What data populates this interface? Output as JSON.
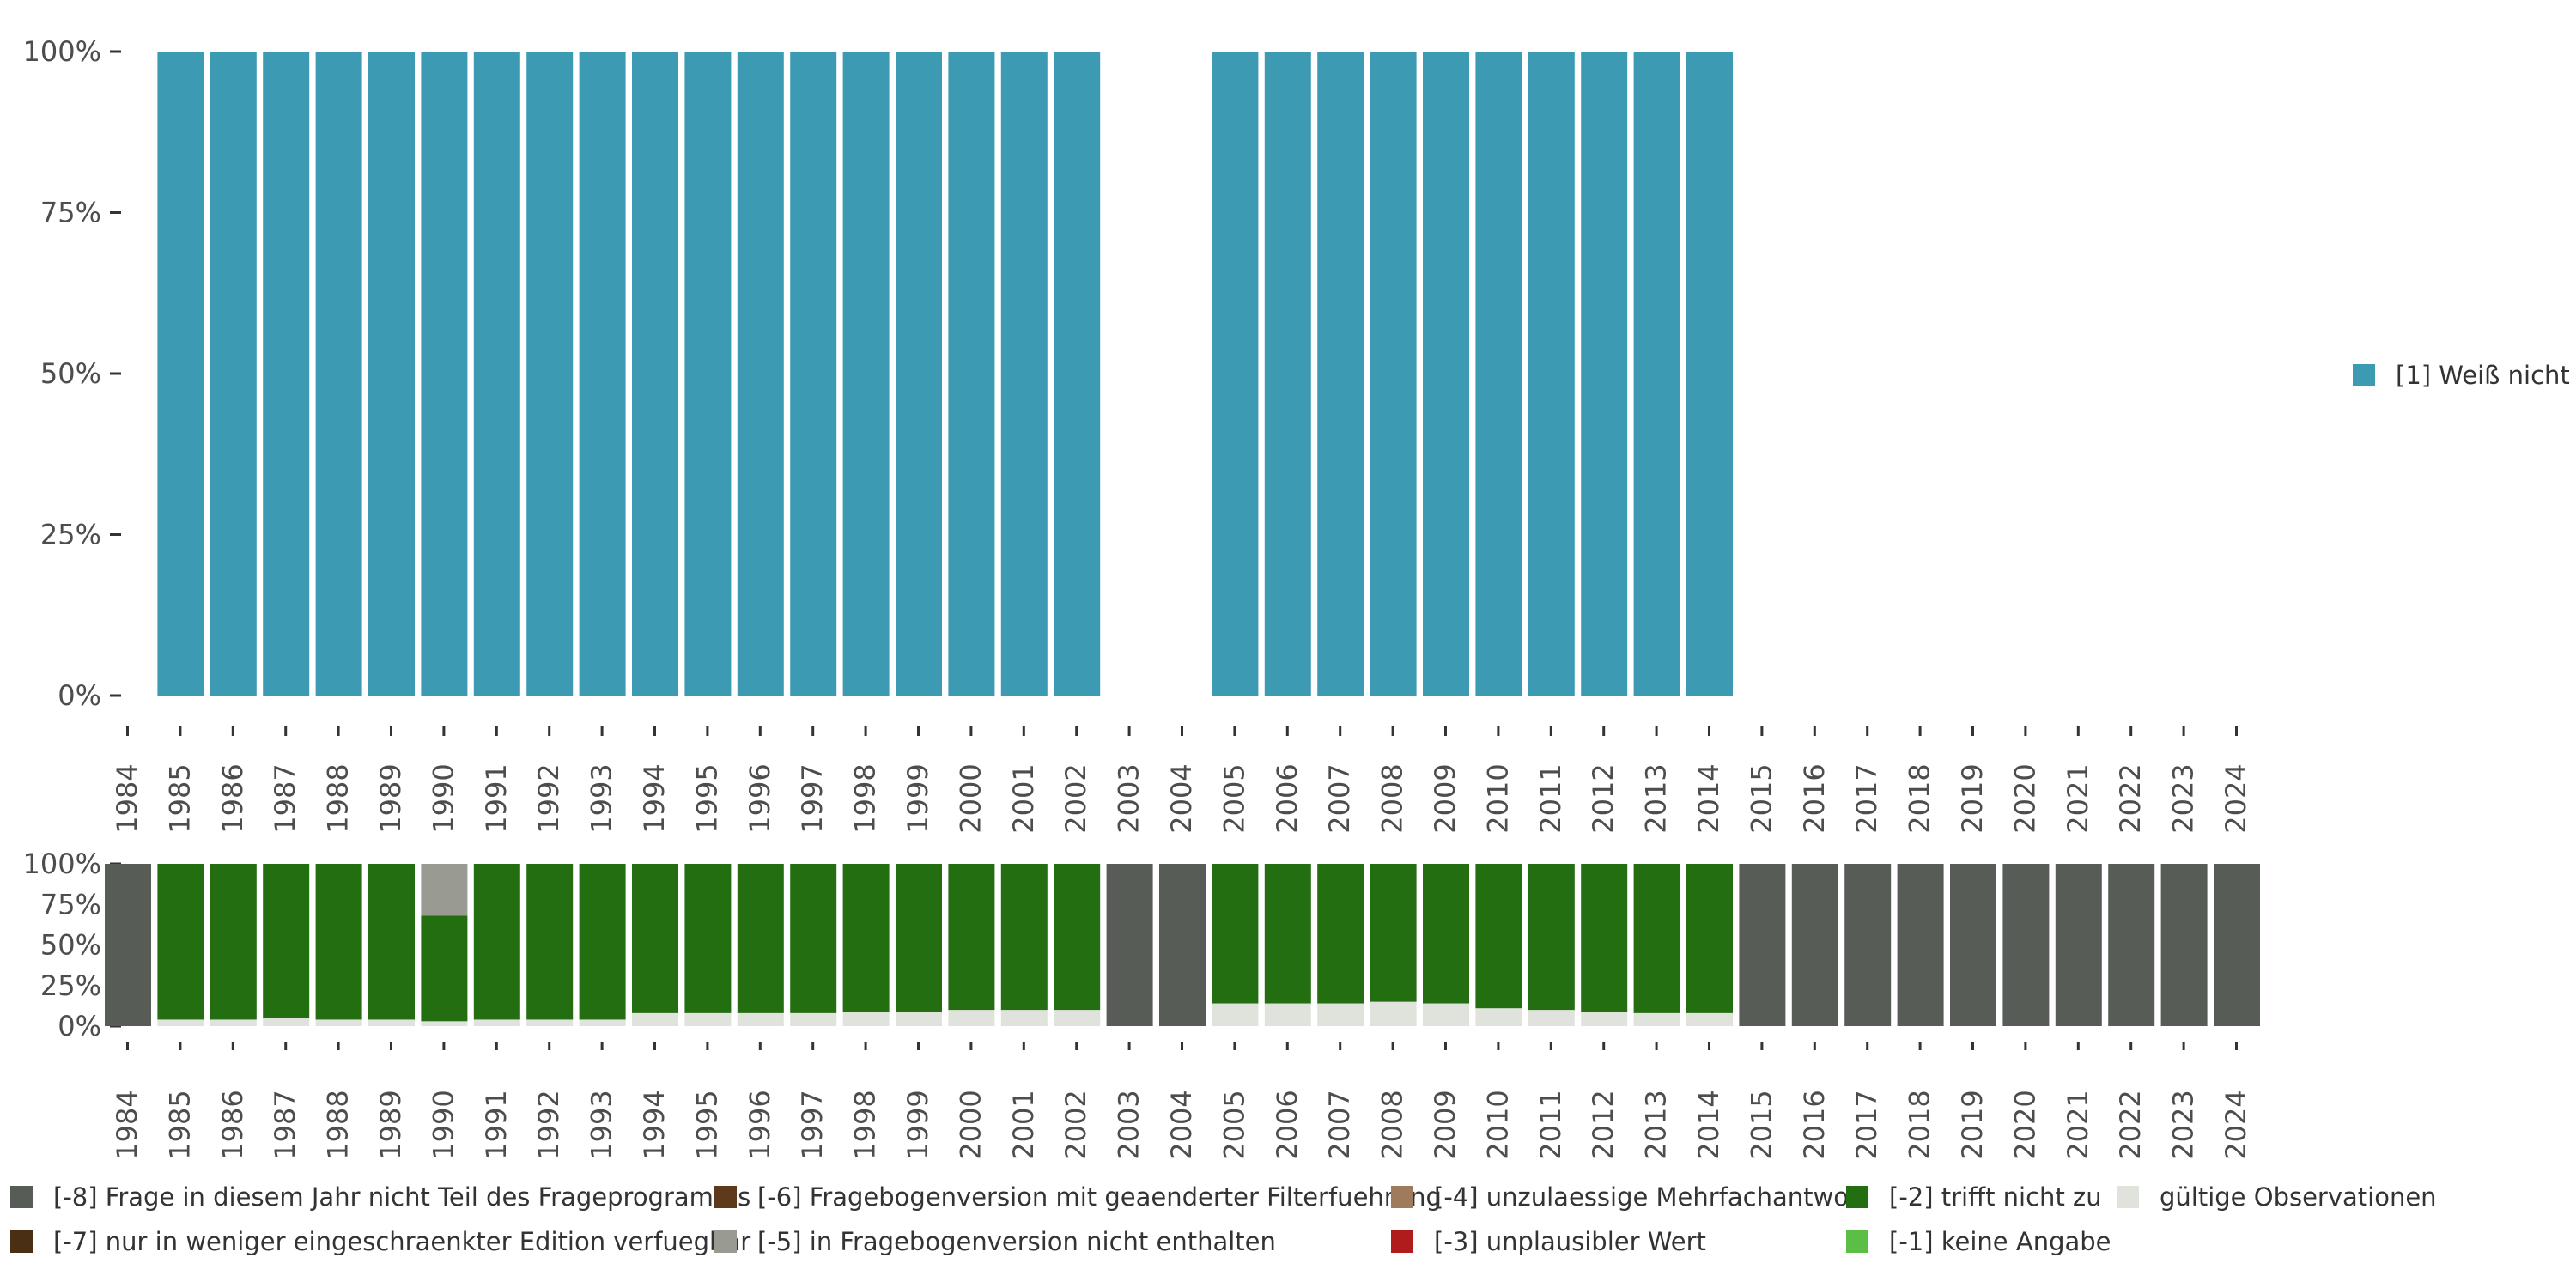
{
  "chart_data": [
    {
      "type": "bar",
      "stacked": true,
      "title": "",
      "xlabel": "",
      "ylabel": "",
      "ylim": [
        0,
        100
      ],
      "y_ticks": [
        "0%",
        "25%",
        "50%",
        "75%",
        "100%"
      ],
      "categories": [
        "1984",
        "1985",
        "1986",
        "1987",
        "1988",
        "1989",
        "1990",
        "1991",
        "1992",
        "1993",
        "1994",
        "1995",
        "1996",
        "1997",
        "1998",
        "1999",
        "2000",
        "2001",
        "2002",
        "2003",
        "2004",
        "2005",
        "2006",
        "2007",
        "2008",
        "2009",
        "2010",
        "2011",
        "2012",
        "2013",
        "2014",
        "2015",
        "2016",
        "2017",
        "2018",
        "2019",
        "2020",
        "2021",
        "2022",
        "2023",
        "2024"
      ],
      "series": [
        {
          "name": "[1] Weiß nicht",
          "color": "#3d9ab3",
          "values": [
            null,
            100,
            100,
            100,
            100,
            100,
            100,
            100,
            100,
            100,
            100,
            100,
            100,
            100,
            100,
            100,
            100,
            100,
            100,
            null,
            null,
            100,
            100,
            100,
            100,
            100,
            100,
            100,
            100,
            100,
            100,
            null,
            null,
            null,
            null,
            null,
            null,
            null,
            null,
            null,
            null
          ]
        }
      ],
      "legend": {
        "position": "right",
        "items": [
          {
            "label": "[1] Weiß nicht",
            "color": "#3d9ab3"
          }
        ]
      }
    },
    {
      "type": "bar",
      "stacked": true,
      "title": "",
      "xlabel": "",
      "ylabel": "",
      "ylim": [
        0,
        100
      ],
      "y_ticks": [
        "0%",
        "25%",
        "50%",
        "75%",
        "100%"
      ],
      "categories": [
        "1984",
        "1985",
        "1986",
        "1987",
        "1988",
        "1989",
        "1990",
        "1991",
        "1992",
        "1993",
        "1994",
        "1995",
        "1996",
        "1997",
        "1998",
        "1999",
        "2000",
        "2001",
        "2002",
        "2003",
        "2004",
        "2005",
        "2006",
        "2007",
        "2008",
        "2009",
        "2010",
        "2011",
        "2012",
        "2013",
        "2014",
        "2015",
        "2016",
        "2017",
        "2018",
        "2019",
        "2020",
        "2021",
        "2022",
        "2023",
        "2024"
      ],
      "series": [
        {
          "name": "gültige Observationen",
          "color": "#dfe3dc",
          "values": [
            0,
            4,
            4,
            5,
            4,
            4,
            3,
            4,
            4,
            4,
            8,
            8,
            8,
            8,
            9,
            9,
            10,
            10,
            10,
            0,
            0,
            14,
            14,
            14,
            15,
            14,
            11,
            10,
            9,
            8,
            8,
            0,
            0,
            0,
            0,
            0,
            0,
            0,
            0,
            0,
            0
          ]
        },
        {
          "name": "[-2] trifft nicht zu",
          "color": "#226e10",
          "values": [
            0,
            96,
            96,
            95,
            96,
            96,
            65,
            96,
            96,
            96,
            92,
            92,
            92,
            92,
            91,
            91,
            90,
            90,
            90,
            0,
            0,
            86,
            86,
            86,
            85,
            86,
            89,
            90,
            91,
            92,
            92,
            0,
            0,
            0,
            0,
            0,
            0,
            0,
            0,
            0,
            0
          ]
        },
        {
          "name": "[-5] in Fragebogenversion nicht enthalten",
          "color": "#999b93",
          "values": [
            0,
            0,
            0,
            0,
            0,
            0,
            32,
            0,
            0,
            0,
            0,
            0,
            0,
            0,
            0,
            0,
            0,
            0,
            0,
            0,
            0,
            0,
            0,
            0,
            0,
            0,
            0,
            0,
            0,
            0,
            0,
            0,
            0,
            0,
            0,
            0,
            0,
            0,
            0,
            0,
            0
          ]
        },
        {
          "name": "[-8] Frage in diesem Jahr nicht Teil des Frageprogramms",
          "color": "#575d56",
          "values": [
            100,
            0,
            0,
            0,
            0,
            0,
            0,
            0,
            0,
            0,
            0,
            0,
            0,
            0,
            0,
            0,
            0,
            0,
            0,
            100,
            100,
            0,
            0,
            0,
            0,
            0,
            0,
            0,
            0,
            0,
            0,
            100,
            100,
            100,
            100,
            100,
            100,
            100,
            100,
            100,
            100
          ]
        }
      ]
    }
  ],
  "legend": {
    "items": [
      {
        "label": "[-8] Frage in diesem Jahr nicht Teil des Frageprogramms",
        "color": "#575d56"
      },
      {
        "label": "[-7] nur in weniger eingeschraenkter Edition verfuegbar",
        "color": "#4a2f14"
      },
      {
        "label": "[-6] Fragebogenversion mit geaenderter Filterfuehrung",
        "color": "#5c3a1a"
      },
      {
        "label": "[-5] in Fragebogenversion nicht enthalten",
        "color": "#999b93"
      },
      {
        "label": "[-4] unzulaessige Mehrfachantwort",
        "color": "#9e7b5a"
      },
      {
        "label": "[-3] unplausibler Wert",
        "color": "#b01c1c"
      },
      {
        "label": "[-2] trifft nicht zu",
        "color": "#226e10"
      },
      {
        "label": "[-1] keine Angabe",
        "color": "#5bbf45"
      },
      {
        "label": "gültige Observationen",
        "color": "#dfe3dc"
      }
    ]
  }
}
